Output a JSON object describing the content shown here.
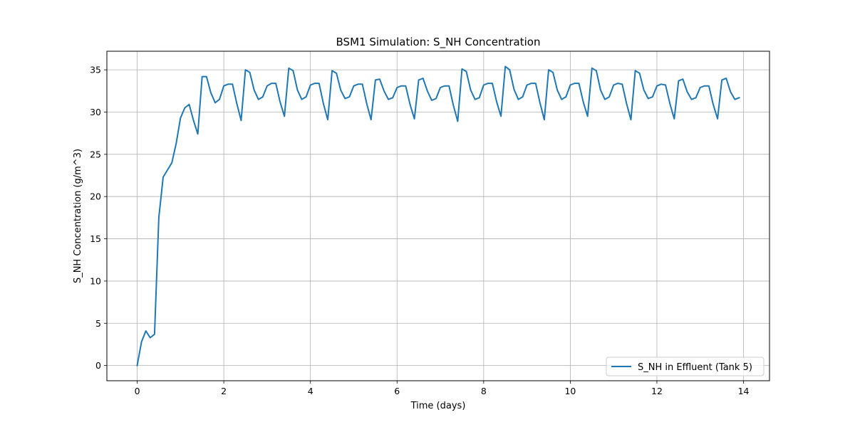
{
  "chart_data": {
    "type": "line",
    "title": "BSM1 Simulation: S_NH Concentration",
    "xlabel": "Time (days)",
    "ylabel": "S_NH Concentration (g/m^3)",
    "xlim": [
      -0.7,
      14.6
    ],
    "ylim": [
      -1.8,
      37.2
    ],
    "xticks": [
      0,
      2,
      4,
      6,
      8,
      10,
      12,
      14
    ],
    "yticks": [
      0,
      5,
      10,
      15,
      20,
      25,
      30,
      35
    ],
    "grid": true,
    "legend_position": "lower right",
    "series": [
      {
        "name": "S_NH in Effluent (Tank 5)",
        "color": "#1f77b4",
        "x": [
          0,
          0.1,
          0.2,
          0.3,
          0.4,
          0.5,
          0.6,
          0.8,
          0.9,
          1.0,
          1.1,
          1.2,
          1.3,
          1.4,
          1.5,
          1.6,
          1.7,
          1.8,
          1.9,
          2.0,
          2.1,
          2.2,
          2.3,
          2.4,
          2.5,
          2.6,
          2.7,
          2.8,
          2.9,
          3.0,
          3.1,
          3.2,
          3.3,
          3.4,
          3.5,
          3.6,
          3.7,
          3.8,
          3.9,
          4.0,
          4.1,
          4.2,
          4.3,
          4.4,
          4.5,
          4.6,
          4.7,
          4.8,
          4.9,
          5.0,
          5.1,
          5.2,
          5.3,
          5.4,
          5.5,
          5.6,
          5.7,
          5.8,
          5.9,
          6.0,
          6.1,
          6.2,
          6.3,
          6.4,
          6.5,
          6.6,
          6.7,
          6.8,
          6.9,
          7.0,
          7.1,
          7.2,
          7.3,
          7.4,
          7.5,
          7.6,
          7.7,
          7.8,
          7.9,
          8.0,
          8.1,
          8.2,
          8.3,
          8.4,
          8.5,
          8.6,
          8.7,
          8.8,
          8.9,
          9.0,
          9.1,
          9.2,
          9.3,
          9.4,
          9.5,
          9.6,
          9.7,
          9.8,
          9.9,
          10.0,
          10.1,
          10.2,
          10.3,
          10.4,
          10.5,
          10.6,
          10.7,
          10.8,
          10.9,
          11.0,
          11.1,
          11.2,
          11.3,
          11.4,
          11.5,
          11.6,
          11.7,
          11.8,
          11.9,
          12.0,
          12.1,
          12.2,
          12.3,
          12.4,
          12.5,
          12.6,
          12.7,
          12.8,
          12.9,
          13.0,
          13.1,
          13.2,
          13.3,
          13.4,
          13.5,
          13.6,
          13.7,
          13.8,
          13.9
        ],
        "y": [
          0.0,
          2.8,
          4.1,
          3.3,
          3.7,
          17.5,
          22.3,
          24.0,
          26.3,
          29.3,
          30.5,
          30.9,
          29.0,
          27.4,
          34.2,
          34.2,
          32.3,
          31.1,
          31.5,
          33.1,
          33.3,
          33.3,
          31.0,
          29.0,
          35.0,
          34.7,
          32.6,
          31.5,
          31.8,
          33.1,
          33.4,
          33.4,
          31.2,
          29.5,
          35.2,
          34.9,
          32.6,
          31.5,
          31.8,
          33.2,
          33.4,
          33.4,
          31.0,
          29.1,
          34.9,
          34.6,
          32.6,
          31.6,
          31.8,
          33.1,
          33.3,
          33.3,
          31.0,
          29.1,
          33.8,
          33.9,
          32.5,
          31.5,
          31.7,
          32.9,
          33.1,
          33.1,
          30.9,
          29.2,
          33.8,
          34.0,
          32.5,
          31.4,
          31.6,
          32.9,
          33.1,
          33.1,
          30.8,
          28.9,
          35.1,
          34.8,
          32.6,
          31.5,
          31.7,
          33.2,
          33.4,
          33.4,
          31.2,
          29.5,
          35.4,
          35.0,
          32.7,
          31.5,
          31.8,
          33.2,
          33.4,
          33.4,
          31.1,
          29.1,
          35.0,
          34.7,
          32.6,
          31.5,
          31.8,
          33.2,
          33.4,
          33.4,
          31.2,
          29.5,
          35.2,
          34.9,
          32.6,
          31.5,
          31.8,
          33.2,
          33.4,
          33.3,
          31.0,
          29.1,
          34.9,
          34.6,
          32.6,
          31.6,
          31.8,
          33.1,
          33.3,
          33.2,
          31.0,
          29.2,
          33.7,
          33.9,
          32.4,
          31.5,
          31.7,
          32.9,
          33.1,
          33.1,
          30.9,
          29.2,
          33.8,
          34.0,
          32.4,
          31.5,
          31.7
        ]
      }
    ]
  }
}
